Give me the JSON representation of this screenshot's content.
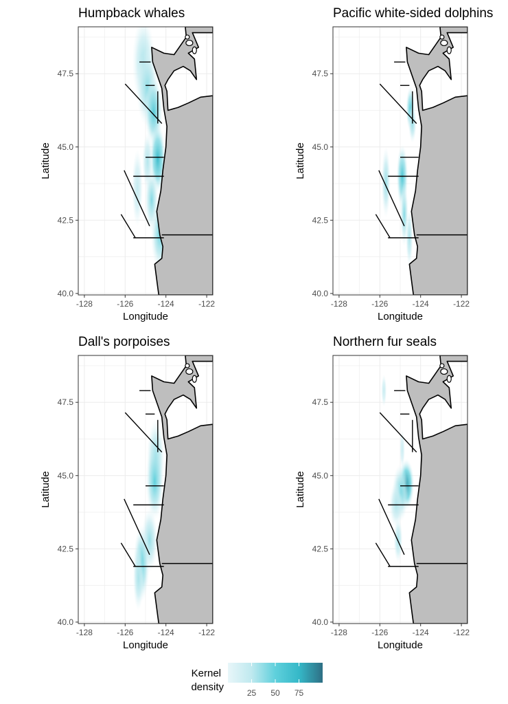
{
  "chart_data": [
    {
      "type": "heatmap",
      "title": "Humpback whales",
      "xlabel": "Longitude",
      "ylabel": "Latitude",
      "xlim": [
        -128.3,
        -121.7
      ],
      "ylim": [
        39.95,
        49.1
      ],
      "x_ticks": [
        "-128",
        "-126",
        "-124",
        "-122"
      ],
      "y_ticks": [
        "40.0",
        "42.5",
        "45.0",
        "47.5"
      ],
      "grid": true,
      "hotspots": [
        {
          "lon": -125.1,
          "lat": 47.9,
          "slon": 0.25,
          "slat": 0.7,
          "density": 30
        },
        {
          "lon": -124.9,
          "lat": 47.0,
          "slon": 0.25,
          "slat": 0.6,
          "density": 38
        },
        {
          "lon": -124.6,
          "lat": 46.2,
          "slon": 0.2,
          "slat": 0.55,
          "density": 55
        },
        {
          "lon": -124.4,
          "lat": 44.6,
          "slon": 0.18,
          "slat": 0.55,
          "density": 70
        },
        {
          "lon": -124.9,
          "lat": 44.5,
          "slon": 0.12,
          "slat": 0.45,
          "density": 28
        },
        {
          "lon": -125.4,
          "lat": 43.6,
          "slon": 0.12,
          "slat": 0.6,
          "density": 22
        },
        {
          "lon": -124.7,
          "lat": 43.2,
          "slon": 0.15,
          "slat": 0.5,
          "density": 40
        },
        {
          "lon": -124.3,
          "lat": 42.0,
          "slon": 0.2,
          "slat": 0.55,
          "density": 45
        }
      ]
    },
    {
      "type": "heatmap",
      "title": "Pacific white-sided dolphins",
      "xlabel": "Longitude",
      "ylabel": "Latitude",
      "xlim": [
        -128.3,
        -121.7
      ],
      "ylim": [
        39.95,
        49.1
      ],
      "x_ticks": [
        "-128",
        "-126",
        "-124",
        "-122"
      ],
      "y_ticks": [
        "40.0",
        "42.5",
        "45.0",
        "47.5"
      ],
      "grid": true,
      "hotspots": [
        {
          "lon": -124.5,
          "lat": 46.3,
          "slon": 0.1,
          "slat": 0.35,
          "density": 55
        },
        {
          "lon": -124.4,
          "lat": 45.8,
          "slon": 0.09,
          "slat": 0.3,
          "density": 35
        },
        {
          "lon": -124.9,
          "lat": 44.0,
          "slon": 0.13,
          "slat": 0.5,
          "density": 60
        },
        {
          "lon": -125.7,
          "lat": 43.8,
          "slon": 0.1,
          "slat": 0.55,
          "density": 35
        },
        {
          "lon": -124.8,
          "lat": 42.7,
          "slon": 0.09,
          "slat": 0.5,
          "density": 40
        },
        {
          "lon": -124.55,
          "lat": 41.9,
          "slon": 0.08,
          "slat": 0.45,
          "density": 30
        }
      ]
    },
    {
      "type": "heatmap",
      "title": "Dall's porpoises",
      "xlabel": "Longitude",
      "ylabel": "Latitude",
      "xlim": [
        -128.3,
        -121.7
      ],
      "ylim": [
        39.95,
        49.1
      ],
      "x_ticks": [
        "-128",
        "-126",
        "-124",
        "-122"
      ],
      "y_ticks": [
        "40.0",
        "42.5",
        "45.0",
        "47.5"
      ],
      "grid": true,
      "hotspots": [
        {
          "lon": -124.5,
          "lat": 45.6,
          "slon": 0.2,
          "slat": 0.6,
          "density": 40
        },
        {
          "lon": -124.55,
          "lat": 44.8,
          "slon": 0.2,
          "slat": 0.6,
          "density": 50
        },
        {
          "lon": -124.8,
          "lat": 42.8,
          "slon": 0.18,
          "slat": 0.5,
          "density": 35
        },
        {
          "lon": -125.2,
          "lat": 42.0,
          "slon": 0.18,
          "slat": 0.6,
          "density": 50
        },
        {
          "lon": -125.35,
          "lat": 41.5,
          "slon": 0.12,
          "slat": 0.5,
          "density": 30
        }
      ]
    },
    {
      "type": "heatmap",
      "title": "Northern fur seals",
      "xlabel": "Longitude",
      "ylabel": "Latitude",
      "xlim": [
        -128.3,
        -121.7
      ],
      "ylim": [
        39.95,
        49.1
      ],
      "x_ticks": [
        "-128",
        "-126",
        "-124",
        "-122"
      ],
      "y_ticks": [
        "40.0",
        "42.5",
        "45.0",
        "47.5"
      ],
      "grid": true,
      "hotspots": [
        {
          "lon": -125.8,
          "lat": 47.9,
          "slon": 0.06,
          "slat": 0.25,
          "density": 20
        },
        {
          "lon": -124.9,
          "lat": 45.9,
          "slon": 0.06,
          "slat": 0.3,
          "density": 18
        },
        {
          "lon": -124.7,
          "lat": 44.7,
          "slon": 0.18,
          "slat": 0.4,
          "density": 85
        },
        {
          "lon": -125.0,
          "lat": 44.4,
          "slon": 0.18,
          "slat": 0.45,
          "density": 45
        },
        {
          "lon": -125.2,
          "lat": 44.0,
          "slon": 0.15,
          "slat": 0.35,
          "density": 28
        },
        {
          "lon": -125.1,
          "lat": 42.8,
          "slon": 0.1,
          "slat": 0.35,
          "density": 30
        }
      ]
    }
  ],
  "legend": {
    "title_line1": "Kernel",
    "title_line2": "density",
    "ticks": [
      "25",
      "50",
      "75"
    ],
    "tick_values": [
      25,
      50,
      75
    ],
    "range": [
      0,
      100
    ],
    "colors": [
      "#e8f6f9",
      "#bfe9ef",
      "#5fd0dc",
      "#35b8c8",
      "#2e7f92"
    ]
  },
  "colors": {
    "land": "#bebebe",
    "coast": "#000000",
    "grid": "#ebebeb",
    "panel_border": "#333333"
  }
}
